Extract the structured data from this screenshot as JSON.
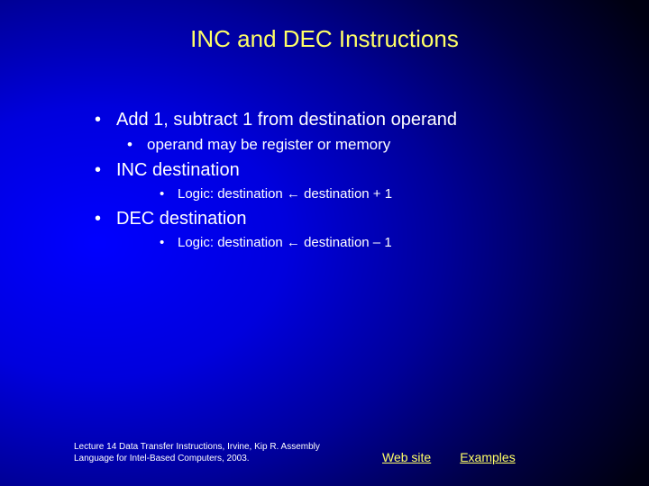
{
  "title": "INC and DEC Instructions",
  "bullets": {
    "b1": "Add 1, subtract 1 from destination operand",
    "b1a": "operand may be register or memory",
    "b2": "INC destination",
    "b2a": "Logic: destination ← destination + 1",
    "b3": "DEC destination",
    "b3a": "Logic: destination ← destination – 1"
  },
  "footer": {
    "citation": "Lecture 14 Data Transfer Instructions, Irvine, Kip R. Assembly Language for Intel-Based Computers, 2003.",
    "link1": "Web site",
    "link2": "Examples"
  },
  "colors": {
    "title": "#ffff66",
    "body": "#ffffff",
    "link": "#ffff66",
    "bg_center": "#0000ff",
    "bg_edge": "#000011"
  }
}
